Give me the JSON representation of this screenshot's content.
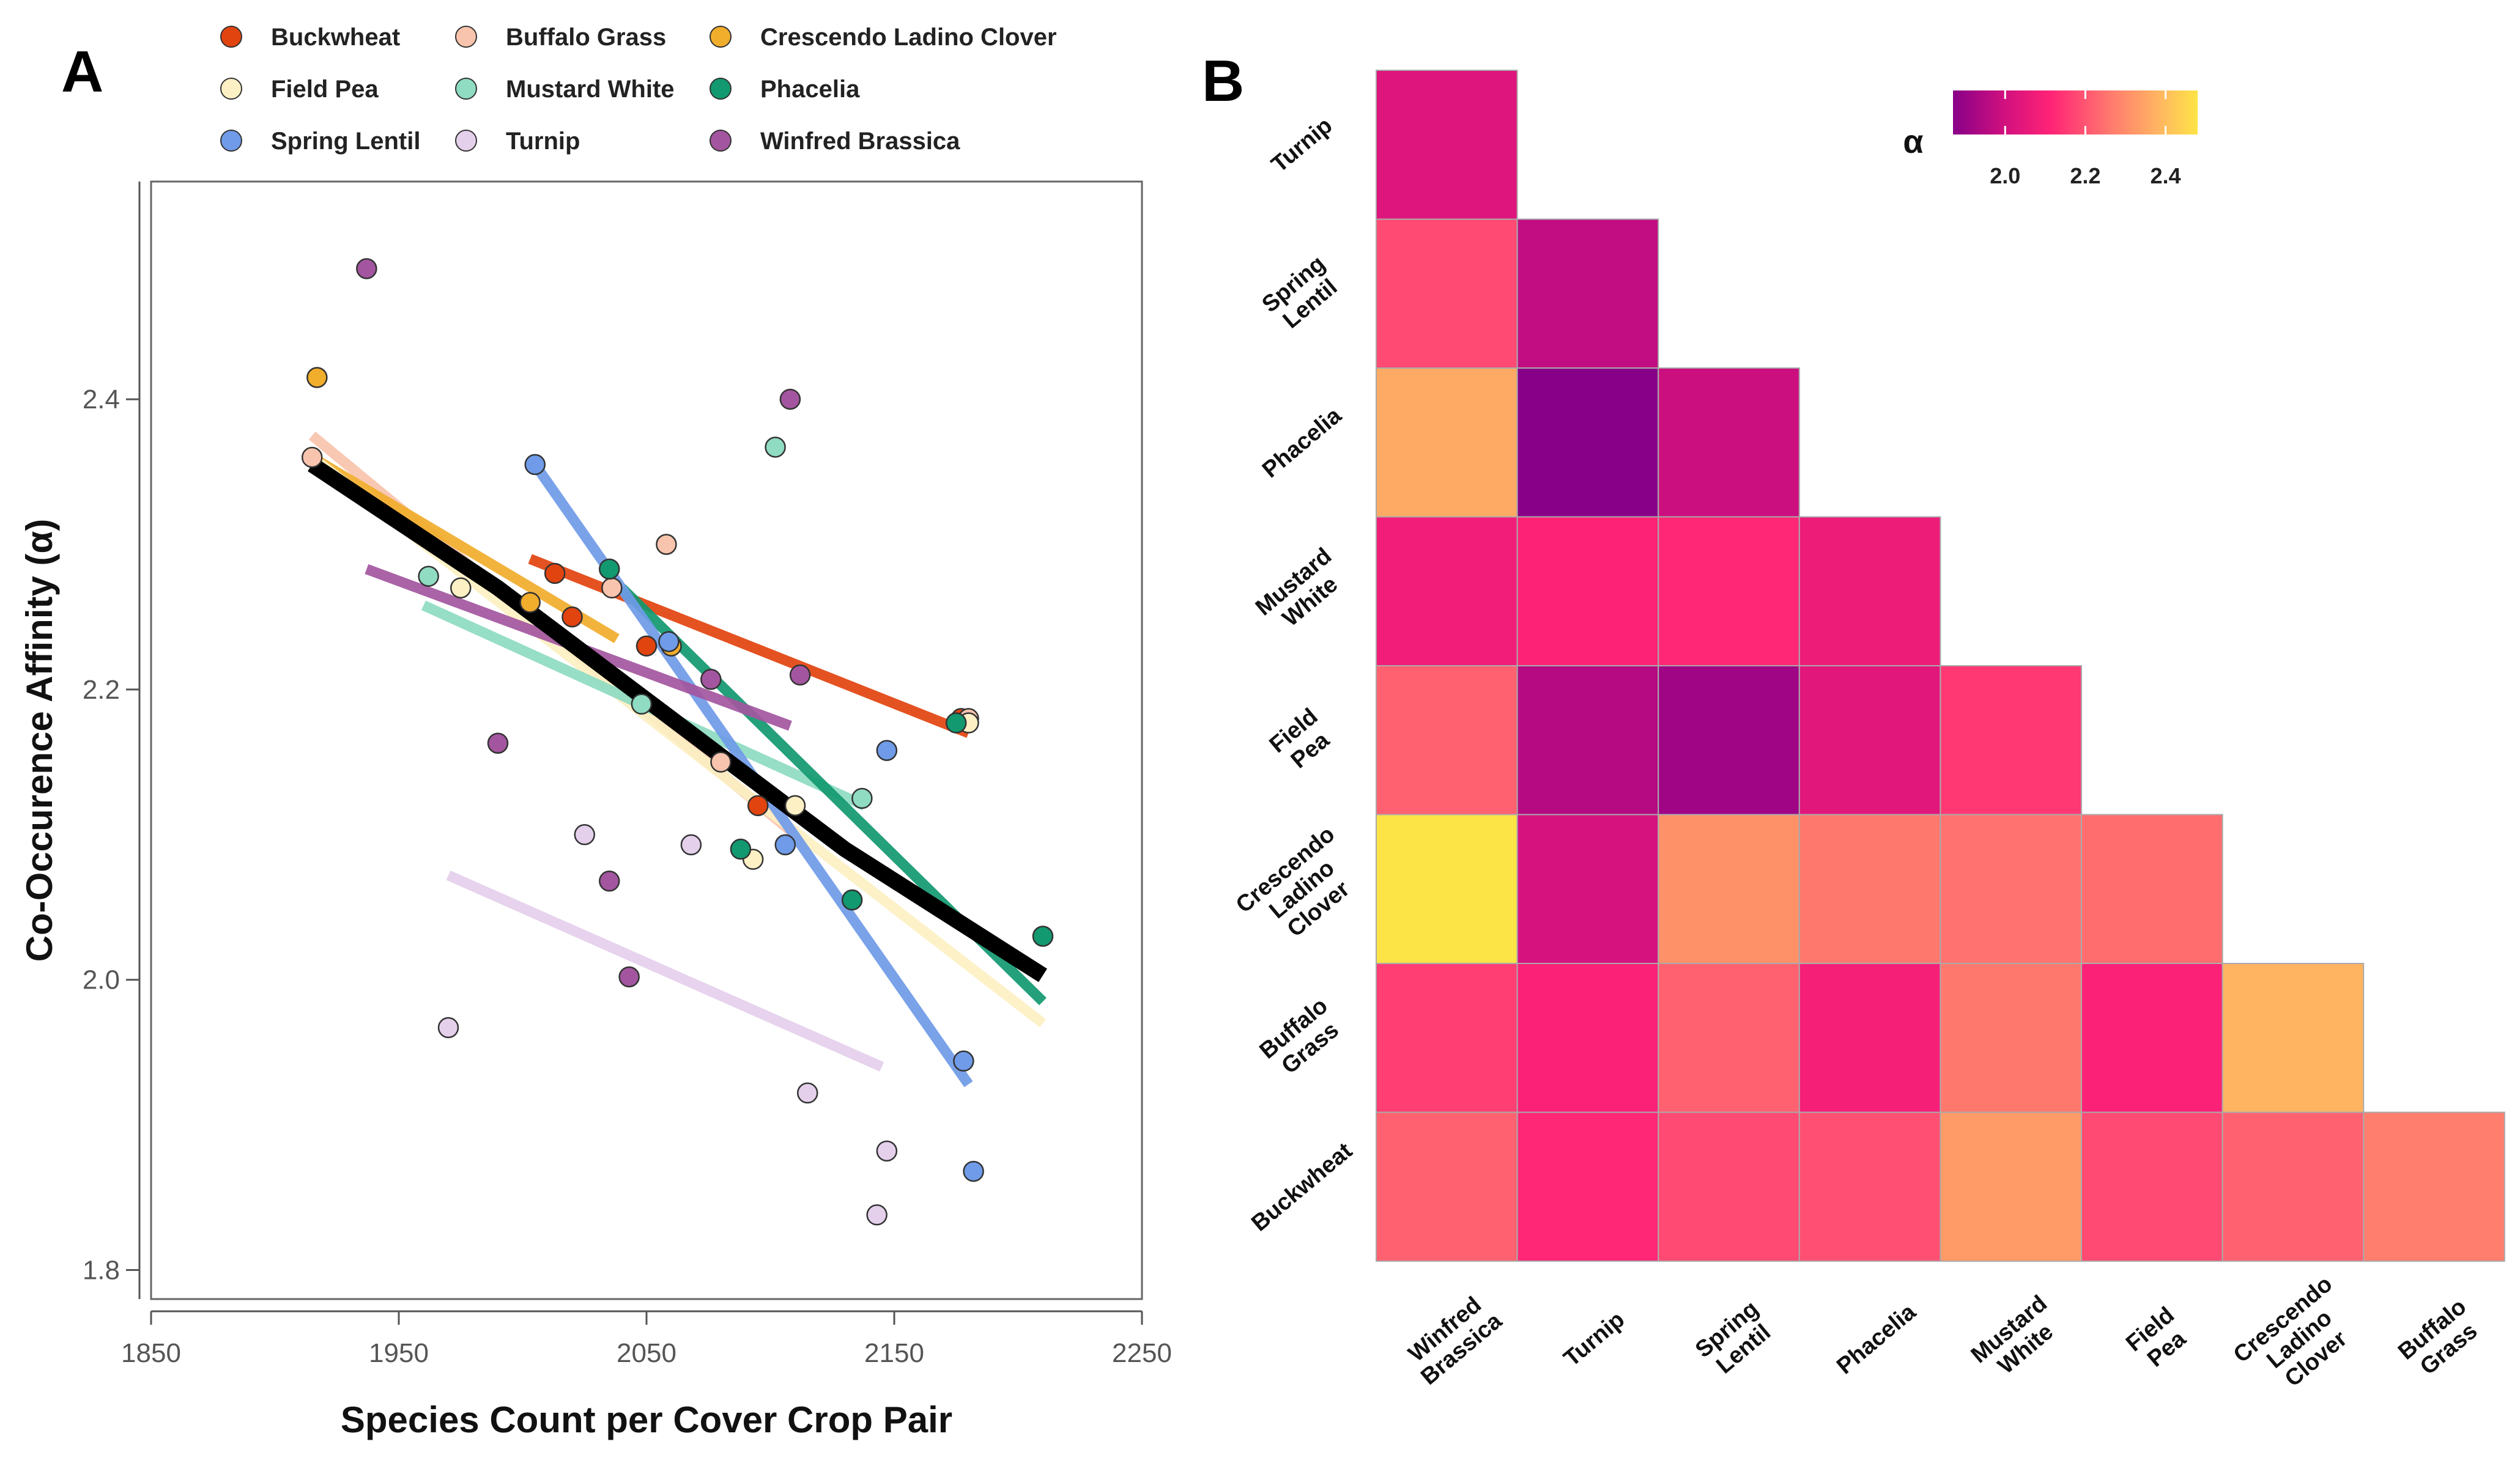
{
  "panel_labels": {
    "a": "A",
    "b": "B"
  },
  "chart_data": [
    {
      "type": "scatter",
      "title": "",
      "xlabel": "Species Count per Cover Crop Pair",
      "ylabel": "Co-Occurence Affinity (α)",
      "xlim": [
        1850,
        2250
      ],
      "ylim": [
        1.78,
        2.55
      ],
      "xticks": [
        1850,
        1950,
        2050,
        2150,
        2250
      ],
      "yticks": [
        1.8,
        2.0,
        2.2,
        2.4
      ],
      "xtick_labels": [
        "1850",
        "1950",
        "2050",
        "2150",
        "2250"
      ],
      "ytick_labels": [
        "1.8",
        "2.0",
        "2.2",
        "2.4"
      ],
      "legend_position": "top",
      "series": [
        {
          "name": "Buckwheat",
          "color": "#e2440f",
          "points": [
            [
              2013,
              2.28
            ],
            [
              2020,
              2.25
            ],
            [
              2050,
              2.23
            ],
            [
              2095,
              2.12
            ],
            [
              2177,
              2.18
            ]
          ],
          "trend": [
            [
              2003,
              2.29
            ],
            [
              2180,
              2.17
            ]
          ]
        },
        {
          "name": "Buffalo Grass",
          "color": "#f9c4ad",
          "points": [
            [
              2058,
              2.3
            ],
            [
              2036,
              2.27
            ],
            [
              2080,
              2.15
            ],
            [
              2180,
              2.18
            ],
            [
              1915,
              2.36
            ]
          ],
          "trend": [
            [
              1915,
              2.375
            ],
            [
              2110,
              2.1
            ]
          ]
        },
        {
          "name": "Crescendo Ladino Clover",
          "color": "#f1ad2c",
          "points": [
            [
              1917,
              2.415
            ],
            [
              2003,
              2.26
            ],
            [
              2060,
              2.23
            ]
          ],
          "trend": [
            [
              1915,
              2.36
            ],
            [
              2038,
              2.235
            ]
          ]
        },
        {
          "name": "Field Pea",
          "color": "#fdf0c4",
          "points": [
            [
              2180,
              2.177
            ],
            [
              2093,
              2.083
            ],
            [
              2110,
              2.12
            ],
            [
              1975,
              2.27
            ]
          ],
          "trend": [
            [
              1915,
              2.36
            ],
            [
              2210,
              1.97
            ]
          ]
        },
        {
          "name": "Mustard White",
          "color": "#8fdcc3",
          "points": [
            [
              1962,
              2.278
            ],
            [
              2102,
              2.367
            ],
            [
              2137,
              2.125
            ],
            [
              2048,
              2.19
            ]
          ],
          "trend": [
            [
              1960,
              2.258
            ],
            [
              2138,
              2.12
            ]
          ]
        },
        {
          "name": "Phacelia",
          "color": "#129970",
          "points": [
            [
              2035,
              2.283
            ],
            [
              2210,
              2.03
            ],
            [
              2088,
              2.09
            ],
            [
              2133,
              2.055
            ],
            [
              2175,
              2.177
            ]
          ],
          "trend": [
            [
              2040,
              2.27
            ],
            [
              2210,
              1.985
            ]
          ]
        },
        {
          "name": "Spring Lentil",
          "color": "#6f9be8",
          "points": [
            [
              2005,
              2.355
            ],
            [
              2059,
              2.233
            ],
            [
              2147,
              2.158
            ],
            [
              2106,
              2.093
            ],
            [
              2178,
              1.944
            ],
            [
              2182,
              1.868
            ]
          ],
          "trend": [
            [
              2005,
              2.355
            ],
            [
              2180,
              1.928
            ]
          ]
        },
        {
          "name": "Turnip",
          "color": "#e5d0ec",
          "points": [
            [
              1970,
              1.967
            ],
            [
              2025,
              2.1
            ],
            [
              2068,
              2.093
            ],
            [
              2115,
              1.922
            ],
            [
              2147,
              1.882
            ],
            [
              2143,
              1.838
            ]
          ],
          "trend": [
            [
              1970,
              2.072
            ],
            [
              2145,
              1.94
            ]
          ]
        },
        {
          "name": "Winfred Brassica",
          "color": "#a3569f",
          "points": [
            [
              1937,
              2.49
            ],
            [
              1990,
              2.163
            ],
            [
              2035,
              2.068
            ],
            [
              2043,
              2.002
            ],
            [
              2076,
              2.207
            ],
            [
              2108,
              2.4
            ],
            [
              2112,
              2.21
            ]
          ],
          "trend": [
            [
              1937,
              2.283
            ],
            [
              2108,
              2.175
            ]
          ]
        }
      ],
      "overall_trend": {
        "name": "Overall",
        "color": "#000000",
        "points": [
          [
            1915,
            2.355
          ],
          [
            1990,
            2.27
          ],
          [
            2060,
            2.18
          ],
          [
            2130,
            2.09
          ],
          [
            2210,
            2.003
          ]
        ]
      }
    },
    {
      "type": "heatmap",
      "title": "",
      "row_labels": [
        "Turnip",
        "Spring Lentil",
        "Phacelia",
        "Mustard White",
        "Field Pea",
        "Crescendo Ladino Clover",
        "Buffalo Grass",
        "Buckwheat"
      ],
      "col_labels": [
        "Winfred Brassica",
        "Turnip",
        "Spring Lentil",
        "Phacelia",
        "Mustard White",
        "Field Pea",
        "Crescendo Ladino Clover",
        "Buffalo Grass"
      ],
      "values": [
        [
          2.03,
          null,
          null,
          null,
          null,
          null,
          null,
          null
        ],
        [
          2.18,
          1.97,
          null,
          null,
          null,
          null,
          null,
          null
        ],
        [
          2.36,
          1.87,
          1.99,
          null,
          null,
          null,
          null,
          null
        ],
        [
          2.08,
          2.11,
          2.12,
          2.07,
          null,
          null,
          null,
          null
        ],
        [
          2.22,
          1.95,
          1.91,
          2.04,
          2.15,
          null,
          null,
          null
        ],
        [
          2.48,
          2.01,
          2.31,
          2.26,
          2.25,
          2.24,
          null,
          null
        ],
        [
          2.16,
          2.1,
          2.22,
          2.09,
          2.26,
          2.1,
          2.38,
          null
        ],
        [
          2.22,
          2.12,
          2.18,
          2.19,
          2.33,
          2.18,
          2.22,
          2.27
        ]
      ],
      "colorbar": {
        "title": "α",
        "range": [
          1.87,
          2.48
        ],
        "ticks": [
          2.0,
          2.2,
          2.4
        ],
        "tick_labels": [
          "2.0",
          "2.2",
          "2.4"
        ],
        "stops": [
          "#880088",
          "#d4117e",
          "#ff2376",
          "#ff7c6e",
          "#ffb562",
          "#fde446"
        ]
      }
    }
  ]
}
